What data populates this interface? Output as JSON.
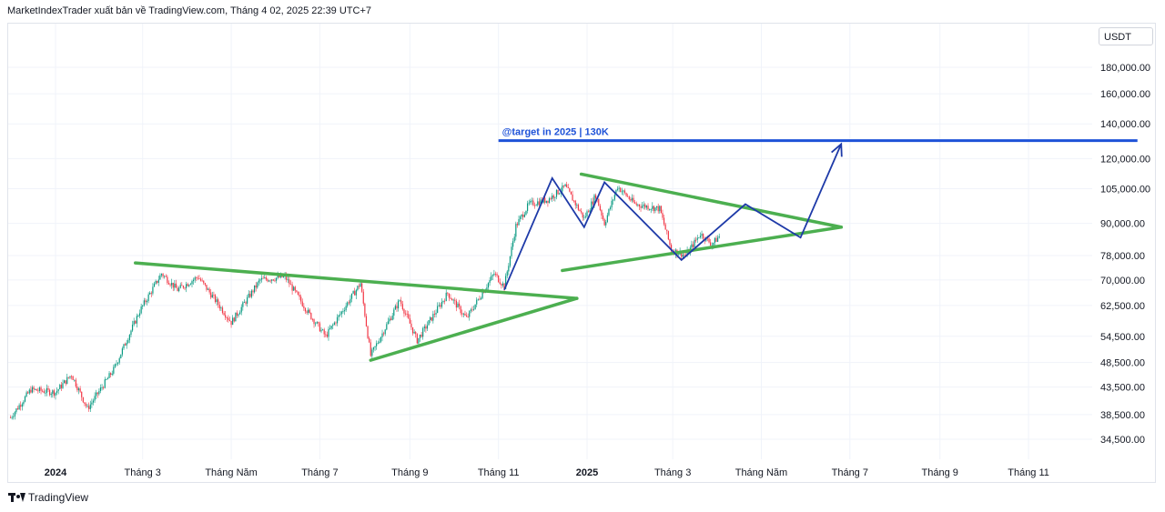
{
  "header": {
    "publisher_line": "MarketIndexTrader xuất bản về TradingView.com, Tháng 4 02, 2025 22:39 UTC+7"
  },
  "currency_button": "USDT",
  "footer": {
    "brand": "TradingView"
  },
  "colors": {
    "up": "#089981",
    "down": "#f23645",
    "pattern": "#4caf50",
    "projection": "#1e3aa8",
    "target": "#1e52d8",
    "grid": "#f0f3fa"
  },
  "chart_data": {
    "type": "candlestick",
    "y_scale": "log",
    "price_ticks": [
      180000,
      160000,
      140000,
      120000,
      105000,
      90000,
      78000,
      70000,
      62500,
      54500,
      48500,
      43500,
      38500,
      34500
    ],
    "price_tick_labels": [
      "180,000.00",
      "160,000.00",
      "140,000.00",
      "120,000.00",
      "105,000.00",
      "90,000.00",
      "78,000.00",
      "70,000.00",
      "62,500.00",
      "54,500.00",
      "48,500.00",
      "43,500.00",
      "38,500.00",
      "34,500.00"
    ],
    "time_ticks": [
      {
        "date": "2024-01-01",
        "label": "2024",
        "bold": true
      },
      {
        "date": "2024-03-01",
        "label": "Tháng 3",
        "bold": false
      },
      {
        "date": "2024-05-01",
        "label": "Tháng Năm",
        "bold": false
      },
      {
        "date": "2024-07-01",
        "label": "Tháng 7",
        "bold": false
      },
      {
        "date": "2024-09-01",
        "label": "Tháng 9",
        "bold": false
      },
      {
        "date": "2024-11-01",
        "label": "Tháng 11",
        "bold": false
      },
      {
        "date": "2025-01-01",
        "label": "2025",
        "bold": true
      },
      {
        "date": "2025-03-01",
        "label": "Tháng 3",
        "bold": false
      },
      {
        "date": "2025-05-01",
        "label": "Tháng Năm",
        "bold": false
      },
      {
        "date": "2025-07-01",
        "label": "Tháng 7",
        "bold": false
      },
      {
        "date": "2025-09-01",
        "label": "Tháng 9",
        "bold": false
      },
      {
        "date": "2025-11-01",
        "label": "Tháng 11",
        "bold": false
      }
    ],
    "price_path": [
      [
        "2023-12-01",
        38000
      ],
      [
        "2023-12-15",
        43000
      ],
      [
        "2024-01-01",
        42500
      ],
      [
        "2024-01-12",
        46000
      ],
      [
        "2024-01-23",
        39500
      ],
      [
        "2024-02-10",
        47000
      ],
      [
        "2024-02-28",
        61000
      ],
      [
        "2024-03-14",
        72000
      ],
      [
        "2024-03-25",
        67000
      ],
      [
        "2024-04-08",
        71000
      ],
      [
        "2024-04-20",
        64000
      ],
      [
        "2024-05-01",
        58000
      ],
      [
        "2024-05-21",
        70000
      ],
      [
        "2024-06-07",
        71000
      ],
      [
        "2024-06-24",
        60000
      ],
      [
        "2024-07-05",
        54500
      ],
      [
        "2024-07-29",
        69000
      ],
      [
        "2024-08-05",
        50000
      ],
      [
        "2024-08-25",
        64000
      ],
      [
        "2024-09-06",
        53500
      ],
      [
        "2024-09-27",
        66000
      ],
      [
        "2024-10-10",
        59000
      ],
      [
        "2024-10-29",
        72000
      ],
      [
        "2024-11-05",
        68000
      ],
      [
        "2024-11-13",
        89000
      ],
      [
        "2024-11-22",
        98000
      ],
      [
        "2024-12-05",
        100000
      ],
      [
        "2024-12-17",
        106000
      ],
      [
        "2024-12-30",
        92000
      ],
      [
        "2025-01-07",
        102000
      ],
      [
        "2025-01-13",
        90000
      ],
      [
        "2025-01-22",
        106000
      ],
      [
        "2025-02-03",
        98000
      ],
      [
        "2025-02-20",
        96000
      ],
      [
        "2025-02-28",
        80000
      ],
      [
        "2025-03-10",
        78000
      ],
      [
        "2025-03-20",
        86000
      ],
      [
        "2025-03-28",
        82000
      ],
      [
        "2025-04-02",
        85000
      ]
    ],
    "annotations": {
      "target_label": "@target in 2025 | 130K",
      "target_price": 130000,
      "target_line": {
        "from": "2024-11-01",
        "to": "2026-01-15"
      },
      "triangle_1": {
        "upper": [
          [
            "2024-02-25",
            75500
          ],
          [
            "2024-12-25",
            64500
          ]
        ],
        "lower": [
          [
            "2024-08-05",
            49000
          ],
          [
            "2024-12-25",
            64500
          ]
        ]
      },
      "triangle_2": {
        "upper": [
          [
            "2024-12-28",
            112000
          ],
          [
            "2025-06-25",
            88500
          ]
        ],
        "lower": [
          [
            "2024-12-15",
            73000
          ],
          [
            "2025-06-25",
            88500
          ]
        ]
      },
      "projection_path": [
        [
          "2024-11-05",
          67000
        ],
        [
          "2024-12-08",
          110000
        ],
        [
          "2024-12-30",
          88500
        ],
        [
          "2025-01-13",
          108000
        ],
        [
          "2025-03-07",
          76500
        ],
        [
          "2025-04-20",
          98000
        ],
        [
          "2025-05-28",
          84500
        ],
        [
          "2025-06-25",
          128000
        ]
      ]
    }
  }
}
